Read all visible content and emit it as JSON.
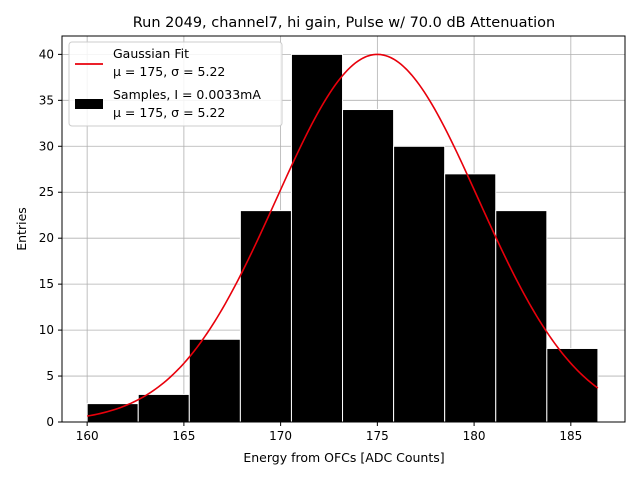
{
  "chart_data": {
    "type": "bar",
    "title": "Run 2049, channel7, hi gain, Pulse w/ 70.0 dB Attenuation",
    "xlabel": "Energy from OFCs [ADC Counts]",
    "ylabel": "Entries",
    "xlim": [
      158.7,
      187.8
    ],
    "ylim": [
      0,
      42
    ],
    "xticks": [
      160,
      165,
      170,
      175,
      180,
      185
    ],
    "yticks": [
      0,
      5,
      10,
      15,
      20,
      25,
      30,
      35,
      40
    ],
    "grid": true,
    "legend_position": "top-left",
    "histogram": {
      "name": "Samples, I = 0.0033mA",
      "stats": "μ = 175, σ = 5.22",
      "color": "#000000",
      "edge_color": "#ffffff",
      "bin_edges": [
        160.0,
        162.64,
        165.28,
        167.92,
        170.56,
        173.2,
        175.84,
        178.48,
        181.12,
        183.76,
        186.4
      ],
      "counts": [
        2,
        3,
        9,
        23,
        40,
        34,
        30,
        27,
        23,
        8
      ]
    },
    "fit": {
      "name": "Gaussian Fit",
      "stats": "μ = 175, σ = 5.22",
      "color": "#e8000b",
      "amplitude": 40,
      "mu": 175,
      "sigma": 5.22,
      "x_range": [
        160.0,
        186.4
      ]
    }
  }
}
